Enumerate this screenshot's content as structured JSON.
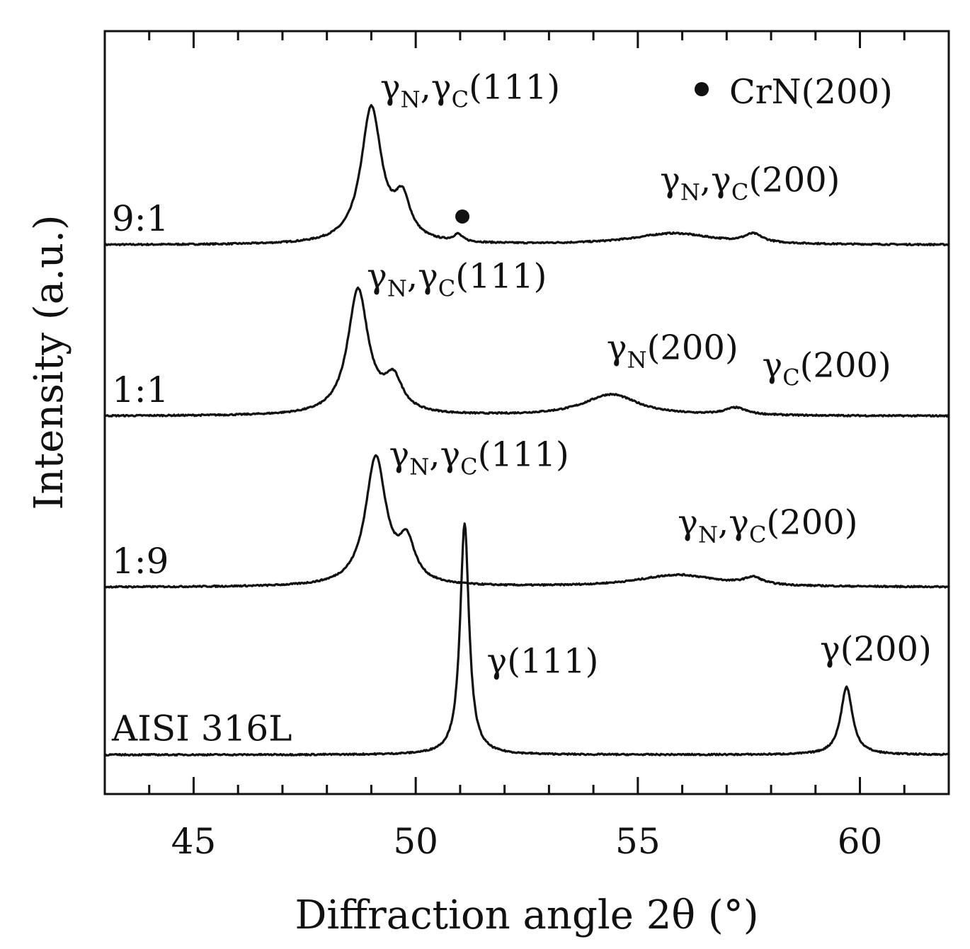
{
  "chart_data": {
    "type": "line",
    "title": "",
    "xlabel": "Diffraction angle 2θ (°)",
    "ylabel": "Intensity (a.u.)",
    "xlim": [
      43.0,
      62.0
    ],
    "x_ticks": [
      45,
      50,
      55,
      60
    ],
    "x_tick_labels": [
      "45",
      "50",
      "55",
      "60"
    ],
    "minor_tick_step": 1,
    "grid": false,
    "legend": {
      "marker": "filled-circle",
      "text": "CrN(200)",
      "placement": "top-right"
    },
    "series": [
      {
        "name": "9:1",
        "baseline": 3.0,
        "peaks": [
          {
            "center": 49.0,
            "height": 1.9,
            "width": 0.28
          },
          {
            "center": 49.7,
            "height": 0.55,
            "width": 0.22
          },
          {
            "center": 50.95,
            "height": 0.1,
            "width": 0.12
          },
          {
            "center": 55.8,
            "height": 0.16,
            "width": 1.1
          },
          {
            "center": 57.6,
            "height": 0.12,
            "width": 0.25
          }
        ],
        "annotations": [
          {
            "base": "γ",
            "sub1": "N",
            "mid": ",γ",
            "sub2": "C",
            "tail": "(111)",
            "x": 49.2,
            "dy": 2.05
          },
          {
            "base": "γ",
            "sub1": "N",
            "mid": ",γ",
            "sub2": "C",
            "tail": "(200)",
            "x": 55.5,
            "dy": 0.75
          }
        ],
        "markers": [
          {
            "x": 51.05,
            "dy": 0.4
          }
        ]
      },
      {
        "name": "1:1",
        "baseline": 0.6,
        "peaks": [
          {
            "center": 48.7,
            "height": 1.75,
            "width": 0.28
          },
          {
            "center": 49.5,
            "height": 0.45,
            "width": 0.25
          },
          {
            "center": 54.4,
            "height": 0.3,
            "width": 0.75
          },
          {
            "center": 57.2,
            "height": 0.1,
            "width": 0.3
          }
        ],
        "annotations": [
          {
            "base": "γ",
            "sub1": "N",
            "mid": ",γ",
            "sub2": "C",
            "tail": "(111)",
            "x": 48.9,
            "dy": 1.8
          },
          {
            "base": "γ",
            "sub1": "N",
            "mid": "",
            "sub2": "",
            "tail": "(200)",
            "x": 54.3,
            "dy": 0.8
          },
          {
            "base": "γ",
            "sub1": "C",
            "mid": "",
            "sub2": "",
            "tail": "(200)",
            "x": 57.8,
            "dy": 0.55
          }
        ],
        "markers": []
      },
      {
        "name": "1:9",
        "baseline": -1.8,
        "peaks": [
          {
            "center": 49.1,
            "height": 1.8,
            "width": 0.28
          },
          {
            "center": 49.8,
            "height": 0.55,
            "width": 0.22
          },
          {
            "center": 55.9,
            "height": 0.17,
            "width": 1.1
          },
          {
            "center": 57.6,
            "height": 0.1,
            "width": 0.25
          }
        ],
        "annotations": [
          {
            "base": "γ",
            "sub1": "N",
            "mid": ",γ",
            "sub2": "C",
            "tail": "(111)",
            "x": 49.4,
            "dy": 1.7
          },
          {
            "base": "γ",
            "sub1": "N",
            "mid": ",γ",
            "sub2": "C",
            "tail": "(200)",
            "x": 55.9,
            "dy": 0.75
          }
        ],
        "markers": []
      },
      {
        "name": "AISI 316L",
        "baseline": -4.15,
        "peaks": [
          {
            "center": 51.1,
            "height": 3.25,
            "width": 0.12
          },
          {
            "center": 59.7,
            "height": 0.95,
            "width": 0.16
          }
        ],
        "annotations": [
          {
            "base": "γ",
            "sub1": "",
            "mid": "",
            "sub2": "",
            "tail": "(111)",
            "x": 51.6,
            "dy": 1.15
          },
          {
            "base": "γ",
            "sub1": "",
            "mid": "",
            "sub2": "",
            "tail": "(200)",
            "x": 59.1,
            "dy": 1.32
          }
        ],
        "markers": []
      }
    ],
    "ylim": [
      -4.7,
      6.0
    ]
  }
}
